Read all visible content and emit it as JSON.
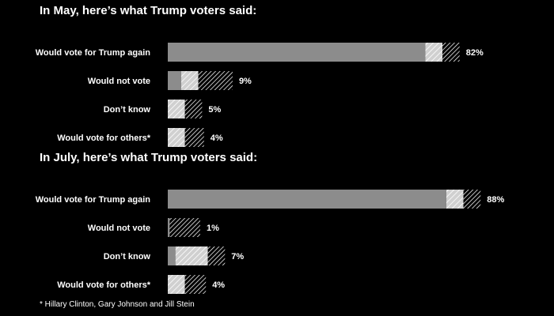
{
  "colors": {
    "background": "#000000",
    "bar_solid": "#8c8c8c",
    "bar_light": "#d0d0d0",
    "hatch_line": "#ffffff",
    "text": "#ffffff"
  },
  "chart_data": [
    {
      "type": "bar",
      "orientation": "horizontal",
      "stacked": true,
      "title": "In May, here’s what Trump voters said:",
      "categories": [
        "Would vote for Trump again",
        "Would not vote",
        "Don’t know",
        "Would vote for others*"
      ],
      "value_labels": [
        "82%",
        "9%",
        "5%",
        "4%"
      ],
      "values": [
        82,
        9,
        5,
        4
      ],
      "segments": [
        {
          "style": "solid",
          "values": [
            67.5,
            3.5,
            0,
            0
          ]
        },
        {
          "style": "light-hatch",
          "values": [
            4.5,
            4.5,
            4.5,
            4.5
          ]
        },
        {
          "style": "dark-hatch",
          "values": [
            4.5,
            9,
            4.5,
            5
          ]
        }
      ],
      "grid": false,
      "legend": "none"
    },
    {
      "type": "bar",
      "orientation": "horizontal",
      "stacked": true,
      "title": "In July, here’s what Trump voters said:",
      "categories": [
        "Would vote for Trump again",
        "Would not vote",
        "Don’t know",
        "Would vote for others*"
      ],
      "value_labels": [
        "88%",
        "1%",
        "7%",
        "4%"
      ],
      "values": [
        88,
        1,
        7,
        4
      ],
      "segments": [
        {
          "style": "solid",
          "values": [
            73,
            0.5,
            2,
            0
          ]
        },
        {
          "style": "light-hatch",
          "values": [
            4.5,
            0,
            8.5,
            4.5
          ]
        },
        {
          "style": "dark-hatch",
          "values": [
            4.5,
            8,
            4.5,
            5.5
          ]
        }
      ],
      "grid": false,
      "legend": "none"
    }
  ],
  "footnote": "* Hillary Clinton, Gary Johnson and Jill Stein"
}
